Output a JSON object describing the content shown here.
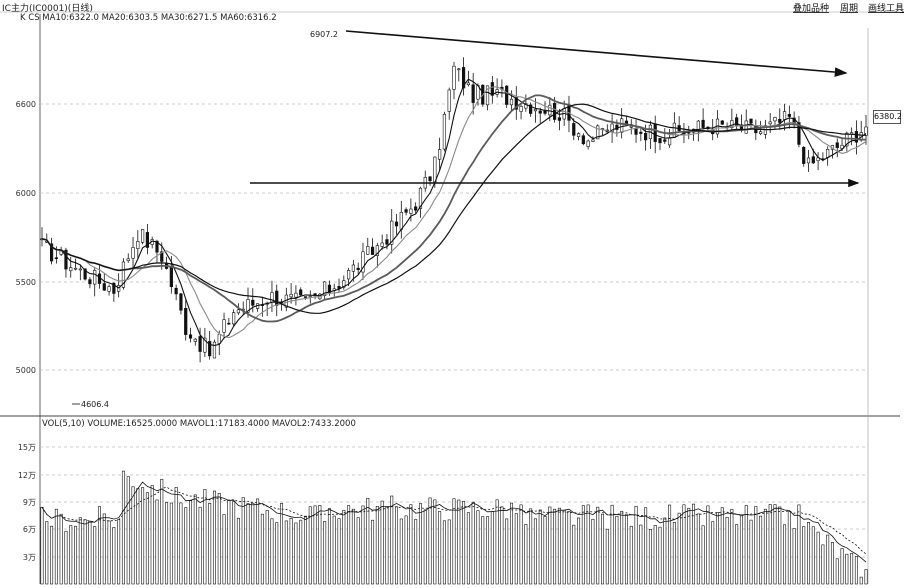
{
  "window": {
    "title": "IC主力(IC0001)(日线)"
  },
  "toolbar": {
    "items": [
      {
        "label": "叠加品种"
      },
      {
        "label": "周期"
      },
      {
        "label": "画线工具"
      }
    ]
  },
  "main_header": "K  CS MA10:6322.0 MA20:6303.5 MA30:6271.5 MA60:6316.2",
  "volume_header": "VOL(5,10) VOLUME:16525.0000 MAVOL1:17183.4000 MAVOL2:7433.2000",
  "last_price_label": "6380.2",
  "colors": {
    "ink": "#111111",
    "grid": "#bfbfbf",
    "ma_light": "#8a8a8a",
    "ma_mid": "#5a5a5a"
  },
  "chart_data": [
    {
      "type": "candlestick",
      "title": "",
      "ylabels": [
        "6600",
        "6000",
        "5500",
        "5000"
      ],
      "annotations": [
        {
          "text": "6907.2",
          "role": "period high"
        },
        {
          "text": "4606.4",
          "role": "period low"
        }
      ],
      "lines": [
        {
          "name": "descending trendline",
          "from_index": 38,
          "to_index": 172
        },
        {
          "name": "horizontal support",
          "from_index": 22,
          "to_index": 172
        }
      ]
    },
    {
      "type": "bar",
      "title": "",
      "ylabels": [
        "15万",
        "12万",
        "9万",
        "6万",
        "3万"
      ]
    }
  ]
}
